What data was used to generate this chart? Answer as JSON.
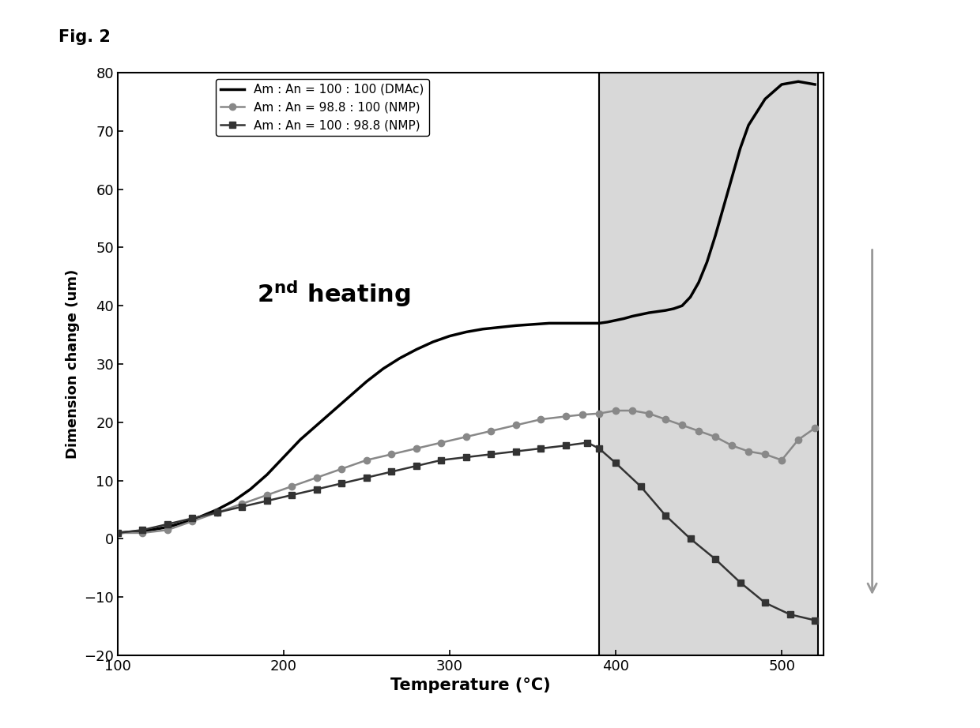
{
  "title": "Fig. 2",
  "xlabel": "Temperature (°C)",
  "ylabel": "Dimension change (um)",
  "xlim": [
    100,
    525
  ],
  "ylim": [
    -20,
    80
  ],
  "xticks": [
    100,
    200,
    300,
    400,
    500
  ],
  "yticks": [
    -20,
    -10,
    0,
    10,
    20,
    30,
    40,
    50,
    60,
    70,
    80
  ],
  "shade_xstart": 390,
  "shade_xend": 522,
  "legend_labels": [
    "Am : An = 100 : 100 (DMAc)",
    "Am : An = 98.8 : 100 (NMP)",
    "Am : An = 100 : 98.8 (NMP)"
  ],
  "line1_color": "#000000",
  "line2_color": "#888888",
  "line3_color": "#333333",
  "line1_x": [
    100,
    110,
    120,
    130,
    140,
    150,
    160,
    170,
    180,
    190,
    200,
    210,
    220,
    230,
    240,
    250,
    260,
    270,
    280,
    290,
    300,
    310,
    320,
    330,
    340,
    350,
    360,
    365,
    370,
    375,
    380,
    385,
    390,
    395,
    400,
    405,
    410,
    415,
    420,
    425,
    430,
    435,
    440,
    445,
    450,
    455,
    460,
    465,
    470,
    475,
    480,
    490,
    500,
    510,
    520
  ],
  "line1_y": [
    1.0,
    1.2,
    1.5,
    2.0,
    2.8,
    3.8,
    5.0,
    6.5,
    8.5,
    11.0,
    14.0,
    17.0,
    19.5,
    22.0,
    24.5,
    27.0,
    29.2,
    31.0,
    32.5,
    33.8,
    34.8,
    35.5,
    36.0,
    36.3,
    36.6,
    36.8,
    37.0,
    37.0,
    37.0,
    37.0,
    37.0,
    37.0,
    37.0,
    37.2,
    37.5,
    37.8,
    38.2,
    38.5,
    38.8,
    39.0,
    39.2,
    39.5,
    40.0,
    41.5,
    44.0,
    47.5,
    52.0,
    57.0,
    62.0,
    67.0,
    71.0,
    75.5,
    78.0,
    78.5,
    78.0
  ],
  "line2_x": [
    100,
    115,
    130,
    145,
    160,
    175,
    190,
    205,
    220,
    235,
    250,
    265,
    280,
    295,
    310,
    325,
    340,
    355,
    370,
    380,
    390,
    400,
    410,
    420,
    430,
    440,
    450,
    460,
    470,
    480,
    490,
    500,
    510,
    520
  ],
  "line2_y": [
    1.0,
    1.0,
    1.5,
    3.0,
    4.5,
    6.0,
    7.5,
    9.0,
    10.5,
    12.0,
    13.5,
    14.5,
    15.5,
    16.5,
    17.5,
    18.5,
    19.5,
    20.5,
    21.0,
    21.3,
    21.5,
    22.0,
    22.0,
    21.5,
    20.5,
    19.5,
    18.5,
    17.5,
    16.0,
    15.0,
    14.5,
    13.5,
    17.0,
    19.0
  ],
  "line3_x": [
    100,
    115,
    130,
    145,
    160,
    175,
    190,
    205,
    220,
    235,
    250,
    265,
    280,
    295,
    310,
    325,
    340,
    355,
    370,
    383,
    390,
    400,
    415,
    430,
    445,
    460,
    475,
    490,
    505,
    520
  ],
  "line3_y": [
    1.0,
    1.5,
    2.5,
    3.5,
    4.5,
    5.5,
    6.5,
    7.5,
    8.5,
    9.5,
    10.5,
    11.5,
    12.5,
    13.5,
    14.0,
    14.5,
    15.0,
    15.5,
    16.0,
    16.5,
    15.5,
    13.0,
    9.0,
    4.0,
    0.0,
    -3.5,
    -7.5,
    -11.0,
    -13.0,
    -14.0
  ]
}
